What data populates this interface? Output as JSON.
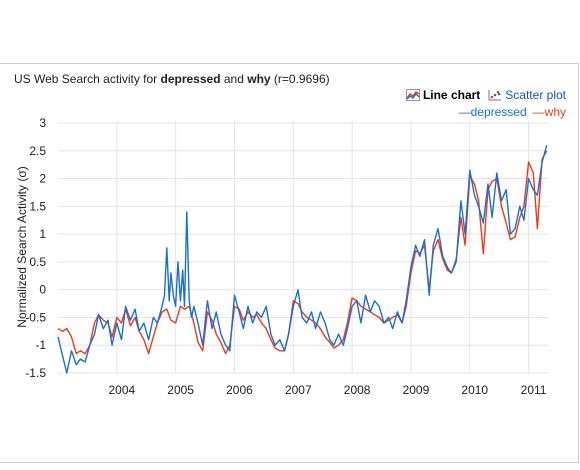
{
  "title": {
    "prefix": "US Web Search activity for ",
    "term1": "depressed",
    "middle": " and ",
    "term2": "why",
    "suffix": " (r=0.9696)"
  },
  "toggles": {
    "line_chart": "Line chart",
    "scatter_plot": "Scatter plot"
  },
  "legend": {
    "depressed": "—depressed",
    "why": "—why"
  },
  "colors": {
    "depressed": "#1a6fd6",
    "why": "#f03a17",
    "grid": "#e4e4e4"
  },
  "chart_data": {
    "type": "line",
    "ylabel": "Normalized Search Activity (σ)",
    "xlabel": "",
    "ylim": [
      -1.5,
      3
    ],
    "yticks": [
      "3",
      "2.5",
      "2",
      "1.5",
      "1",
      "0.5",
      "0",
      "-0.5",
      "-1",
      "-1.5"
    ],
    "xticks": [
      "2004",
      "2005",
      "2006",
      "2007",
      "2008",
      "2009",
      "2010",
      "2011"
    ],
    "xlim": [
      2003.0,
      2011.33
    ],
    "series": [
      {
        "name": "depressed",
        "x": [
          2003.0,
          2003.08,
          2003.15,
          2003.23,
          2003.31,
          2003.38,
          2003.46,
          2003.54,
          2003.62,
          2003.69,
          2003.77,
          2003.85,
          2003.92,
          2004.0,
          2004.08,
          2004.15,
          2004.23,
          2004.31,
          2004.38,
          2004.46,
          2004.54,
          2004.62,
          2004.69,
          2004.77,
          2004.81,
          2004.85,
          2004.89,
          2004.92,
          2004.96,
          2005.0,
          2005.04,
          2005.08,
          2005.12,
          2005.15,
          2005.19,
          2005.23,
          2005.27,
          2005.31,
          2005.38,
          2005.46,
          2005.54,
          2005.62,
          2005.69,
          2005.77,
          2005.85,
          2005.92,
          2006.0,
          2006.08,
          2006.15,
          2006.23,
          2006.31,
          2006.38,
          2006.46,
          2006.54,
          2006.62,
          2006.69,
          2006.77,
          2006.85,
          2006.92,
          2007.0,
          2007.08,
          2007.15,
          2007.23,
          2007.31,
          2007.38,
          2007.46,
          2007.54,
          2007.62,
          2007.69,
          2007.77,
          2007.85,
          2007.92,
          2008.0,
          2008.08,
          2008.15,
          2008.23,
          2008.31,
          2008.38,
          2008.46,
          2008.54,
          2008.62,
          2008.69,
          2008.77,
          2008.85,
          2008.92,
          2009.0,
          2009.08,
          2009.15,
          2009.23,
          2009.31,
          2009.38,
          2009.46,
          2009.54,
          2009.62,
          2009.69,
          2009.77,
          2009.85,
          2009.92,
          2010.0,
          2010.08,
          2010.15,
          2010.23,
          2010.31,
          2010.38,
          2010.46,
          2010.54,
          2010.62,
          2010.69,
          2010.77,
          2010.85,
          2010.92,
          2011.0,
          2011.08,
          2011.15,
          2011.23,
          2011.31
        ],
        "values": [
          -0.85,
          -1.2,
          -1.5,
          -1.1,
          -1.35,
          -1.25,
          -1.3,
          -1.0,
          -0.8,
          -0.45,
          -0.7,
          -0.55,
          -1.0,
          -0.6,
          -0.9,
          -0.3,
          -0.55,
          -0.35,
          -0.75,
          -0.6,
          -0.9,
          -0.5,
          -0.6,
          -0.3,
          -0.1,
          0.75,
          -0.2,
          0.3,
          -0.1,
          -0.3,
          0.5,
          -0.2,
          0.35,
          -0.3,
          1.4,
          -0.2,
          -0.5,
          -0.3,
          -0.6,
          -1.0,
          -0.2,
          -0.7,
          -0.4,
          -0.8,
          -1.0,
          -1.1,
          -0.1,
          -0.4,
          -0.7,
          -0.3,
          -0.6,
          -0.4,
          -0.5,
          -0.3,
          -0.8,
          -1.0,
          -0.9,
          -1.1,
          -0.8,
          -0.3,
          0.0,
          -0.5,
          -0.6,
          -0.4,
          -0.7,
          -0.4,
          -0.6,
          -0.9,
          -1.0,
          -0.8,
          -1.0,
          -0.7,
          -0.3,
          -0.2,
          -0.6,
          -0.1,
          -0.4,
          -0.2,
          -0.3,
          -0.6,
          -0.5,
          -0.7,
          -0.4,
          -0.6,
          -0.2,
          0.4,
          0.8,
          0.6,
          0.9,
          -0.1,
          0.8,
          1.1,
          0.6,
          0.4,
          0.3,
          0.5,
          1.6,
          1.0,
          2.15,
          1.7,
          1.5,
          1.2,
          1.9,
          1.3,
          2.1,
          1.6,
          1.8,
          1.0,
          1.1,
          1.5,
          1.25,
          2.0,
          1.8,
          1.7,
          2.3,
          2.6
        ]
      },
      {
        "name": "why",
        "x": [
          2003.0,
          2003.08,
          2003.15,
          2003.23,
          2003.31,
          2003.38,
          2003.46,
          2003.54,
          2003.62,
          2003.69,
          2003.77,
          2003.85,
          2003.92,
          2004.0,
          2004.08,
          2004.15,
          2004.23,
          2004.31,
          2004.38,
          2004.46,
          2004.54,
          2004.62,
          2004.69,
          2004.77,
          2004.85,
          2004.92,
          2005.0,
          2005.08,
          2005.15,
          2005.23,
          2005.31,
          2005.38,
          2005.46,
          2005.54,
          2005.62,
          2005.69,
          2005.77,
          2005.85,
          2005.92,
          2006.0,
          2006.08,
          2006.15,
          2006.23,
          2006.31,
          2006.38,
          2006.46,
          2006.54,
          2006.62,
          2006.69,
          2006.77,
          2006.85,
          2006.92,
          2007.0,
          2007.08,
          2007.15,
          2007.23,
          2007.31,
          2007.38,
          2007.46,
          2007.54,
          2007.62,
          2007.69,
          2007.77,
          2007.85,
          2007.92,
          2008.0,
          2008.08,
          2008.15,
          2008.23,
          2008.31,
          2008.38,
          2008.46,
          2008.54,
          2008.62,
          2008.69,
          2008.77,
          2008.85,
          2008.92,
          2009.0,
          2009.08,
          2009.15,
          2009.23,
          2009.31,
          2009.38,
          2009.46,
          2009.54,
          2009.62,
          2009.69,
          2009.77,
          2009.85,
          2009.92,
          2010.0,
          2010.08,
          2010.15,
          2010.23,
          2010.31,
          2010.38,
          2010.46,
          2010.54,
          2010.62,
          2010.69,
          2010.77,
          2010.85,
          2010.92,
          2011.0,
          2011.08,
          2011.15,
          2011.23,
          2011.31
        ],
        "values": [
          -0.7,
          -0.75,
          -0.7,
          -0.85,
          -1.15,
          -1.1,
          -1.15,
          -1.0,
          -0.6,
          -0.45,
          -0.55,
          -0.6,
          -0.85,
          -0.5,
          -0.6,
          -0.35,
          -0.65,
          -0.5,
          -0.75,
          -0.9,
          -1.15,
          -0.85,
          -0.6,
          -0.4,
          -0.35,
          -0.55,
          -0.6,
          -0.3,
          -0.35,
          -0.3,
          -0.6,
          -0.95,
          -1.1,
          -0.4,
          -0.55,
          -0.8,
          -0.95,
          -1.15,
          -1.0,
          -0.3,
          -0.35,
          -0.55,
          -0.4,
          -0.5,
          -0.45,
          -0.6,
          -0.7,
          -0.9,
          -1.05,
          -1.1,
          -1.1,
          -0.8,
          -0.2,
          -0.25,
          -0.4,
          -0.5,
          -0.55,
          -0.6,
          -0.7,
          -0.85,
          -0.95,
          -1.05,
          -1.0,
          -0.9,
          -0.6,
          -0.15,
          -0.2,
          -0.3,
          -0.35,
          -0.4,
          -0.45,
          -0.5,
          -0.6,
          -0.55,
          -0.5,
          -0.45,
          -0.6,
          -0.3,
          0.3,
          0.7,
          0.65,
          0.8,
          0.0,
          0.7,
          0.9,
          0.55,
          0.35,
          0.3,
          0.55,
          1.3,
          0.8,
          2.05,
          1.9,
          1.6,
          0.65,
          1.8,
          1.95,
          2.0,
          1.5,
          1.2,
          0.9,
          0.95,
          1.3,
          1.5,
          2.3,
          2.1,
          1.1,
          2.35,
          2.5
        ]
      }
    ],
    "grid": true
  }
}
